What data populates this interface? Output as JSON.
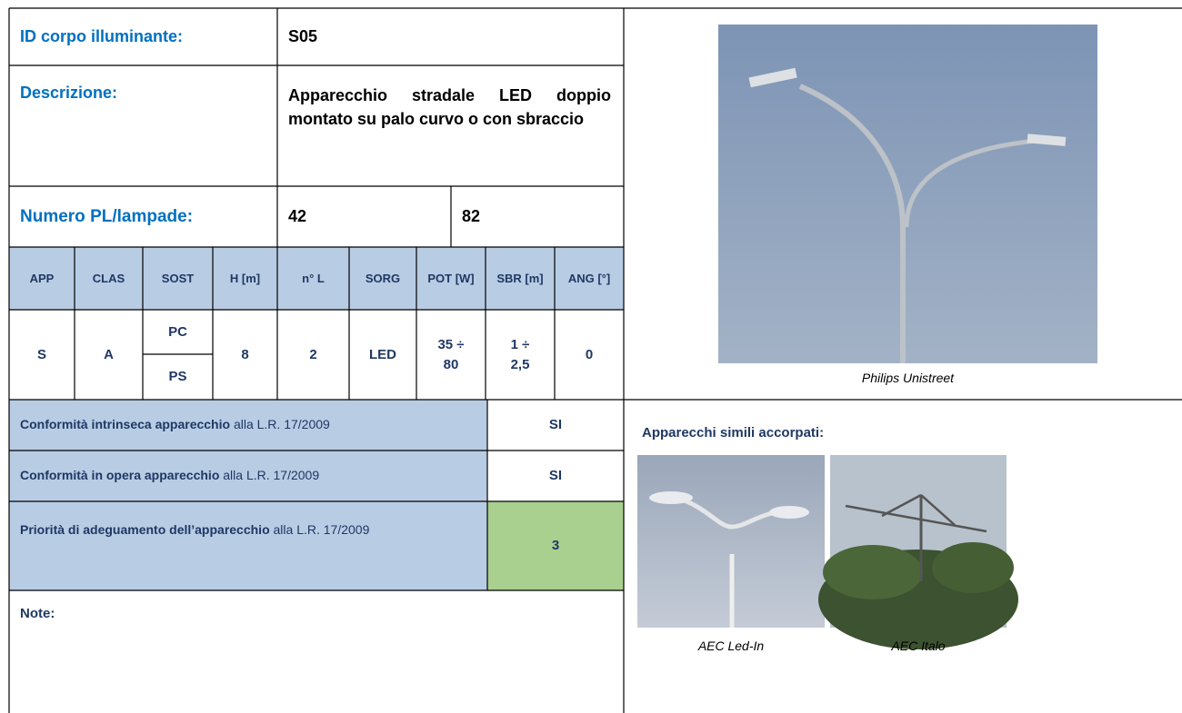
{
  "header": {
    "id_label": "ID corpo illuminante:",
    "id_value": "S05",
    "description_label": "Descrizione:",
    "description_value": "Apparecchio stradale LED doppio montato su palo curvo o con sbraccio",
    "count_label": "Numero PL/lampade:",
    "count_values": [
      "42",
      "82"
    ]
  },
  "table": {
    "columns": [
      "APP",
      "CLAS",
      "SOST",
      "H [m]",
      "n° L",
      "SORG",
      "POT [W]",
      "SBR [m]",
      "ANG [°]"
    ],
    "row": [
      "S",
      "A",
      [
        "PC",
        "PS"
      ],
      "8",
      "2",
      "LED",
      "35 ÷ 80",
      "1 ÷ 2,5",
      "0"
    ]
  },
  "conformity": [
    {
      "label_bold": "Conformità intrinseca apparecchio",
      "label_rest": "alla L.R. 17/2009",
      "value": "SI"
    },
    {
      "label_bold": "Conformità in opera apparecchio",
      "label_rest": "alla L.R. 17/2009",
      "value": "SI"
    },
    {
      "label_bold": "Priorità di adeguamento dell’apparecchio",
      "label_rest": "alla L.R. 17/2009",
      "value": "3"
    }
  ],
  "note_label": "Note:",
  "main_image": {
    "caption": "Philips Unistreet"
  },
  "similar": {
    "title": "Apparecchi simili accorpati:",
    "items": [
      {
        "caption": "AEC Led-In"
      },
      {
        "caption": "AEC Italo"
      }
    ]
  }
}
